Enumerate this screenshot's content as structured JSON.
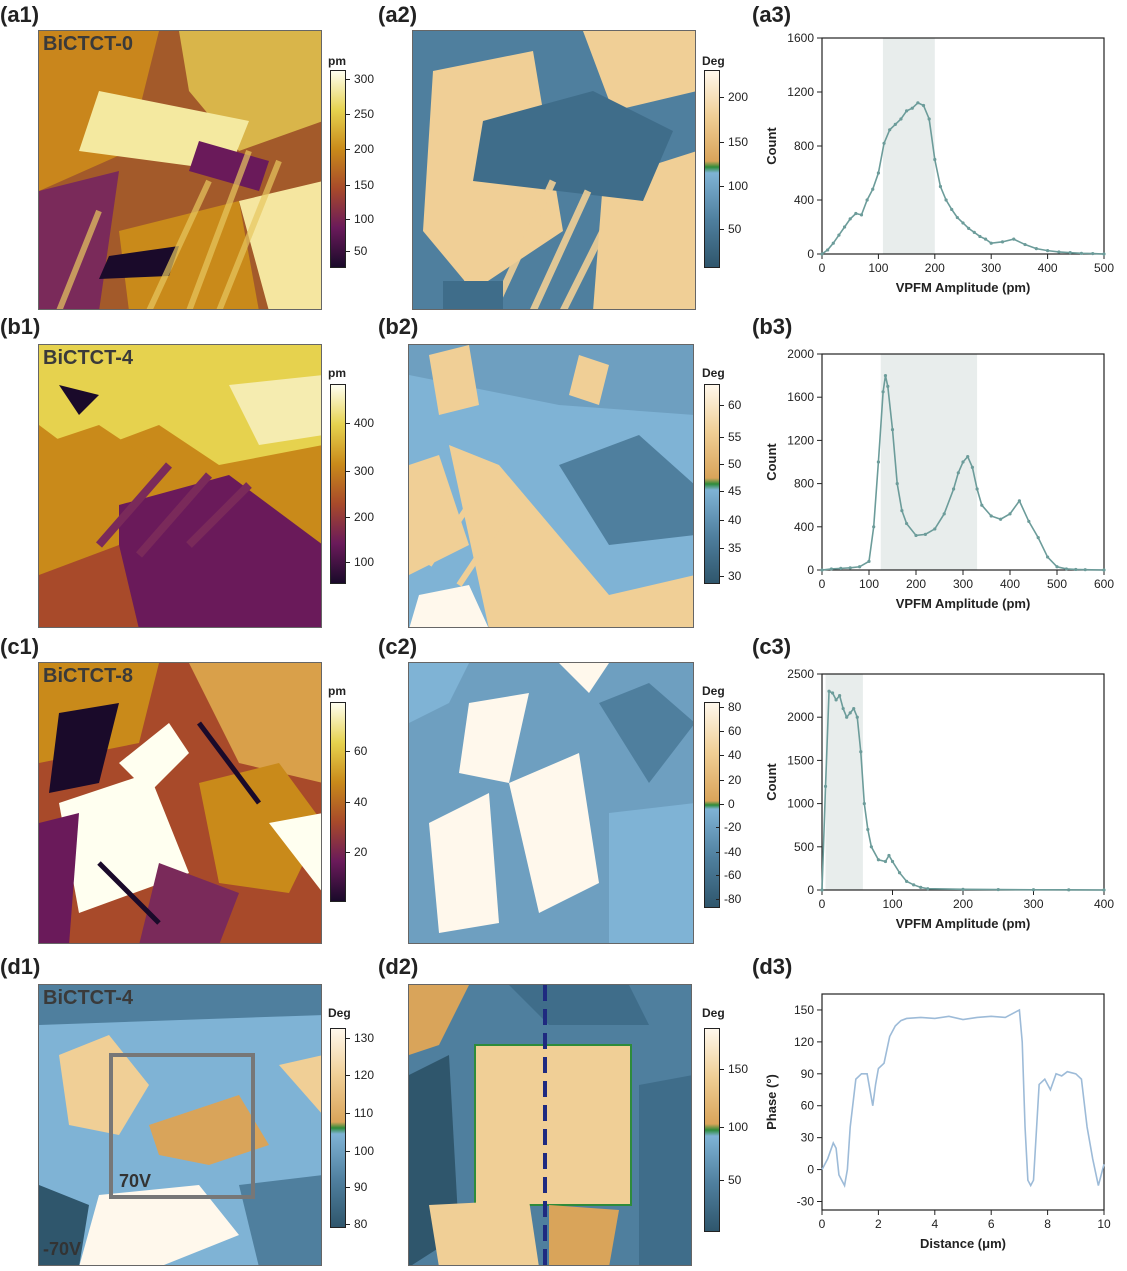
{
  "panel_labels": {
    "a1": "(a1)",
    "a2": "(a2)",
    "a3": "(a3)",
    "b1": "(b1)",
    "b2": "(b2)",
    "b3": "(b3)",
    "c1": "(c1)",
    "c2": "(c2)",
    "c3": "(c3)",
    "d1": "(d1)",
    "d2": "(d2)",
    "d3": "(d3)"
  },
  "samples": {
    "a": "BiCTCT-0",
    "b": "BiCTCT-4",
    "c": "BiCTCT-8",
    "d": "BiCTCT-4"
  },
  "colorbars": {
    "a1": {
      "unit": "pm",
      "ticks": [
        "300",
        "250",
        "200",
        "150",
        "100",
        "50"
      ]
    },
    "a2": {
      "unit": "Deg",
      "ticks": [
        "200",
        "150",
        "100",
        "50"
      ]
    },
    "b1": {
      "unit": "pm",
      "ticks": [
        "400",
        "300",
        "200",
        "100"
      ]
    },
    "b2": {
      "unit": "Deg",
      "ticks": [
        "60",
        "55",
        "50",
        "45",
        "40",
        "35",
        "30"
      ]
    },
    "c1": {
      "unit": "pm",
      "ticks": [
        "60",
        "40",
        "20"
      ]
    },
    "c2": {
      "unit": "Deg",
      "ticks": [
        "80",
        "60",
        "40",
        "20",
        "0",
        "-20",
        "-40",
        "-60",
        "-80"
      ]
    },
    "d1": {
      "unit": "Deg",
      "ticks": [
        "130",
        "120",
        "110",
        "100",
        "90",
        "80"
      ]
    },
    "d2": {
      "unit": "Deg",
      "ticks": [
        "150",
        "100",
        "50"
      ]
    }
  },
  "colors": {
    "afm": [
      "#fffff0",
      "#e6d24e",
      "#c98a1a",
      "#a84a2a",
      "#6a1a5a",
      "#1a0a2a"
    ],
    "phase": [
      "#fff8ec",
      "#f0cf96",
      "#d9a45a",
      "#2e8b3a",
      "#7fb3d5",
      "#4f7f9e",
      "#2f566c"
    ],
    "curve_a": "#6c9c9a",
    "curve_d": "#9dbbd8",
    "band": "#e8edec"
  },
  "annotations": {
    "v_pos": "70V",
    "v_neg": "-70V"
  },
  "chart_data": [
    {
      "type": "line",
      "panel": "a3",
      "title": "",
      "xlabel": "VPFM Amplitude (pm)",
      "ylabel": "Count",
      "xlim": [
        0,
        500
      ],
      "ylim": [
        0,
        1600
      ],
      "xticks": [
        0,
        100,
        200,
        300,
        400,
        500
      ],
      "yticks": [
        0,
        400,
        800,
        1200,
        1600
      ],
      "highlight": [
        108,
        200
      ],
      "x": [
        0,
        10,
        20,
        30,
        40,
        50,
        60,
        70,
        80,
        90,
        100,
        110,
        120,
        130,
        140,
        150,
        160,
        170,
        180,
        190,
        200,
        210,
        220,
        230,
        240,
        250,
        260,
        270,
        280,
        290,
        300,
        320,
        340,
        360,
        380,
        400,
        420,
        440,
        460,
        480,
        500
      ],
      "y": [
        0,
        30,
        80,
        140,
        200,
        260,
        300,
        290,
        400,
        480,
        600,
        820,
        920,
        960,
        1000,
        1060,
        1080,
        1120,
        1100,
        1000,
        700,
        500,
        400,
        330,
        270,
        230,
        190,
        160,
        130,
        110,
        80,
        90,
        110,
        70,
        40,
        25,
        15,
        10,
        5,
        3,
        0
      ]
    },
    {
      "type": "line",
      "panel": "b3",
      "title": "",
      "xlabel": "VPFM Amplitude (pm)",
      "ylabel": "Count",
      "xlim": [
        0,
        600
      ],
      "ylim": [
        0,
        2000
      ],
      "xticks": [
        0,
        100,
        200,
        300,
        400,
        500,
        600
      ],
      "yticks": [
        0,
        400,
        800,
        1200,
        1600,
        2000
      ],
      "highlight": [
        125,
        330
      ],
      "x": [
        0,
        20,
        40,
        60,
        80,
        100,
        110,
        120,
        130,
        135,
        140,
        150,
        160,
        170,
        180,
        200,
        220,
        240,
        260,
        280,
        290,
        300,
        310,
        320,
        330,
        340,
        360,
        380,
        400,
        420,
        440,
        460,
        480,
        500,
        520,
        540,
        560,
        600
      ],
      "y": [
        0,
        10,
        15,
        20,
        30,
        80,
        400,
        1000,
        1650,
        1800,
        1700,
        1300,
        800,
        550,
        430,
        320,
        330,
        380,
        520,
        750,
        900,
        1000,
        1050,
        950,
        750,
        600,
        500,
        470,
        520,
        640,
        450,
        300,
        120,
        30,
        10,
        5,
        3,
        0
      ]
    },
    {
      "type": "line",
      "panel": "c3",
      "title": "",
      "xlabel": "VPFM Amplitude (pm)",
      "ylabel": "Count",
      "xlim": [
        0,
        400
      ],
      "ylim": [
        0,
        2500
      ],
      "xticks": [
        0,
        100,
        200,
        300,
        400
      ],
      "yticks": [
        0,
        500,
        1000,
        1500,
        2000,
        2500
      ],
      "highlight": [
        5,
        58
      ],
      "x": [
        0,
        5,
        10,
        15,
        20,
        25,
        30,
        35,
        40,
        45,
        50,
        55,
        60,
        65,
        70,
        80,
        90,
        95,
        100,
        110,
        120,
        130,
        140,
        150,
        200,
        250,
        300,
        350,
        400
      ],
      "y": [
        0,
        1200,
        2300,
        2280,
        2200,
        2250,
        2100,
        2000,
        2050,
        2100,
        2000,
        1600,
        1000,
        700,
        500,
        350,
        330,
        400,
        330,
        200,
        100,
        60,
        30,
        15,
        8,
        5,
        3,
        2,
        0
      ]
    },
    {
      "type": "line",
      "panel": "d3",
      "title": "",
      "xlabel": "Distance (μm)",
      "ylabel": "Phase (°)",
      "xlim": [
        0,
        10
      ],
      "ylim": [
        -38,
        165
      ],
      "xticks": [
        0,
        2,
        4,
        6,
        8,
        10
      ],
      "yticks": [
        -30,
        0,
        30,
        60,
        90,
        120,
        150
      ],
      "x": [
        0,
        0.2,
        0.4,
        0.5,
        0.6,
        0.7,
        0.8,
        0.9,
        1.0,
        1.2,
        1.4,
        1.6,
        1.8,
        1.9,
        2.0,
        2.2,
        2.4,
        2.6,
        2.8,
        3.0,
        3.5,
        4.0,
        4.5,
        5.0,
        5.5,
        6.0,
        6.5,
        7.0,
        7.1,
        7.2,
        7.3,
        7.4,
        7.5,
        7.7,
        7.9,
        8.1,
        8.3,
        8.5,
        8.7,
        9.0,
        9.2,
        9.4,
        9.6,
        9.8,
        10.0
      ],
      "y": [
        0,
        10,
        25,
        20,
        -5,
        -10,
        -15,
        0,
        40,
        85,
        90,
        90,
        60,
        80,
        95,
        100,
        125,
        135,
        140,
        142,
        143,
        142,
        144,
        141,
        143,
        144,
        143,
        150,
        120,
        40,
        -10,
        -15,
        -10,
        80,
        85,
        75,
        90,
        88,
        92,
        90,
        85,
        40,
        10,
        -15,
        5
      ]
    }
  ]
}
